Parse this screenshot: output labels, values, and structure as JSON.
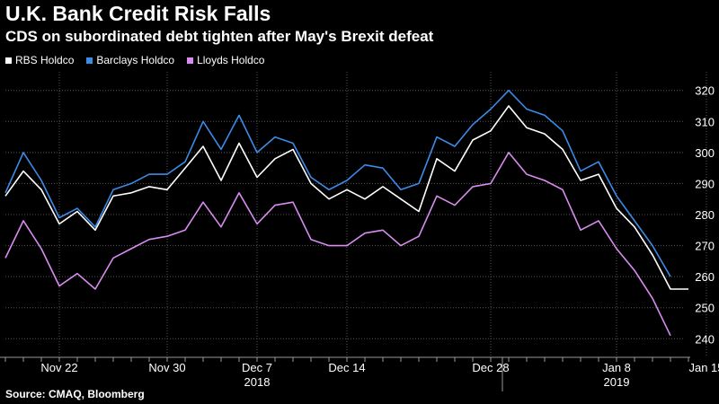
{
  "title": "U.K. Bank Credit Risk Falls",
  "subtitle": "CDS on subordinated debt tighten after May's Brexit defeat",
  "source": "Source: CMAQ, Bloomberg",
  "colors": {
    "background": "#000000",
    "rbs": "#ffffff",
    "barclays": "#3b8be8",
    "lloyds": "#d98cf0",
    "grid": "#555555"
  },
  "chart_data": {
    "type": "line",
    "title": "U.K. Bank Credit Risk Falls",
    "subtitle": "CDS on subordinated debt tighten after May's Brexit defeat",
    "x_tick_labels": [
      "Nov 22",
      "Nov 30",
      "Dec 7",
      "Dec 14",
      "Dec 28",
      "Jan 8",
      "Jan 15"
    ],
    "x_tick_index": [
      3,
      9,
      14,
      19,
      27,
      34,
      39
    ],
    "year_labels": [
      "2018",
      "2019"
    ],
    "year_label_index": [
      14,
      34
    ],
    "year_divider_index": 28,
    "ylim": [
      234,
      326
    ],
    "yticks": [
      240,
      250,
      260,
      270,
      280,
      290,
      300,
      310,
      320
    ],
    "grid": true,
    "legend_position": "top-left",
    "series": [
      {
        "name": "RBS Holdco",
        "color": "#ffffff",
        "values": [
          286,
          294,
          288,
          277,
          281,
          275,
          286,
          287,
          289,
          288,
          295,
          302,
          291,
          303,
          292,
          298,
          301,
          290,
          285,
          288,
          285,
          289,
          285,
          281,
          298,
          294,
          304,
          307,
          315,
          308,
          306,
          301,
          291,
          293,
          282,
          276,
          267,
          256,
          256
        ]
      },
      {
        "name": "Barclays Holdco",
        "color": "#3b8be8",
        "values": [
          287,
          300,
          291,
          279,
          282,
          276,
          288,
          290,
          293,
          293,
          297,
          310,
          301,
          312,
          300,
          305,
          303,
          292,
          288,
          291,
          296,
          295,
          288,
          290,
          305,
          302,
          309,
          314,
          320,
          314,
          312,
          307,
          294,
          297,
          286,
          278,
          270,
          260,
          null
        ]
      },
      {
        "name": "Lloyds Holdco",
        "color": "#d98cf0",
        "values": [
          266,
          278,
          269,
          257,
          261,
          256,
          266,
          269,
          272,
          273,
          275,
          284,
          276,
          287,
          277,
          283,
          284,
          272,
          270,
          270,
          274,
          275,
          270,
          273,
          286,
          283,
          289,
          290,
          300,
          293,
          291,
          288,
          275,
          278,
          269,
          262,
          253,
          241,
          null
        ]
      }
    ]
  }
}
